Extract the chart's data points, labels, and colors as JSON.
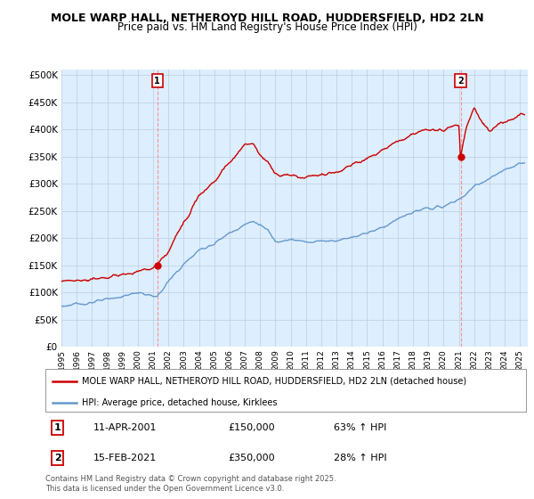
{
  "title": "MOLE WARP HALL, NETHEROYD HILL ROAD, HUDDERSFIELD, HD2 2LN",
  "subtitle": "Price paid vs. HM Land Registry's House Price Index (HPI)",
  "ylabel_ticks": [
    "£0",
    "£50K",
    "£100K",
    "£150K",
    "£200K",
    "£250K",
    "£300K",
    "£350K",
    "£400K",
    "£450K",
    "£500K"
  ],
  "ytick_values": [
    0,
    50000,
    100000,
    150000,
    200000,
    250000,
    300000,
    350000,
    400000,
    450000,
    500000
  ],
  "ylim": [
    0,
    510000
  ],
  "xlim_start": 1995.0,
  "xlim_end": 2025.5,
  "red_color": "#cc0000",
  "blue_color": "#6699cc",
  "chart_bg": "#ddeeff",
  "marker1_date": 2001.27,
  "marker1_value": 150000,
  "marker2_date": 2021.12,
  "marker2_value": 350000,
  "legend_label_red": "MOLE WARP HALL, NETHEROYD HILL ROAD, HUDDERSFIELD, HD2 2LN (detached house)",
  "legend_label_blue": "HPI: Average price, detached house, Kirklees",
  "note1_date": "11-APR-2001",
  "note1_price": "£150,000",
  "note1_hpi": "63% ↑ HPI",
  "note2_date": "15-FEB-2021",
  "note2_price": "£350,000",
  "note2_hpi": "28% ↑ HPI",
  "footer": "Contains HM Land Registry data © Crown copyright and database right 2025.\nThis data is licensed under the Open Government Licence v3.0.",
  "background_color": "#ffffff",
  "grid_color": "#bbccdd",
  "title_fontsize": 9,
  "subtitle_fontsize": 8.5
}
